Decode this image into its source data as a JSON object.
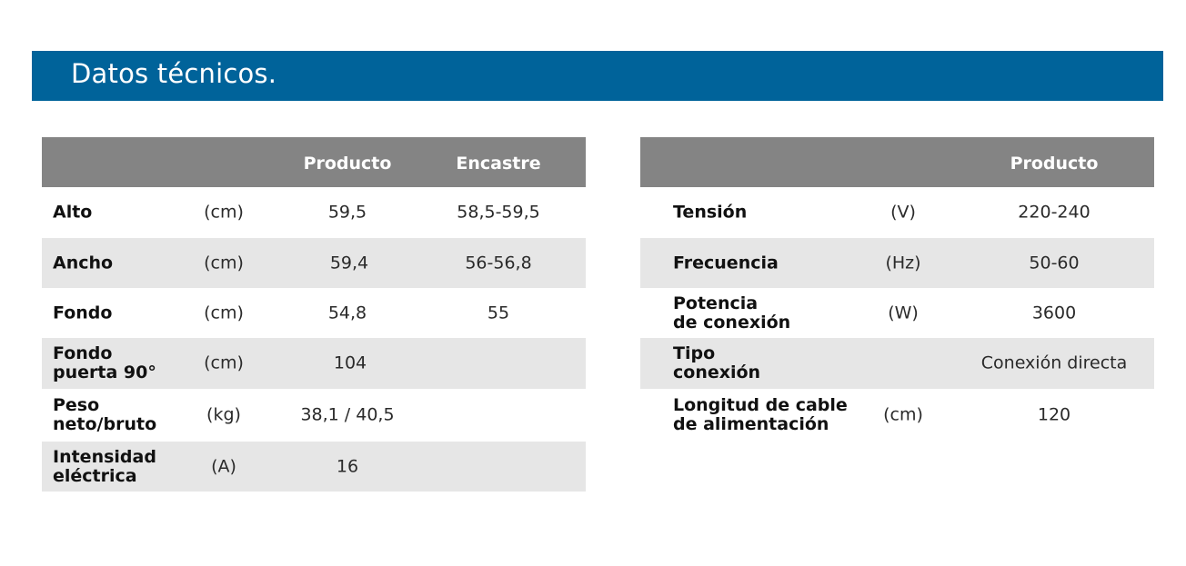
{
  "header": {
    "title": "Datos técnicos."
  },
  "left_table": {
    "columns": [
      "",
      "",
      "Producto",
      "Encastre"
    ],
    "rows": [
      {
        "label_1": "Alto",
        "label_2": "",
        "unit": "(cm)",
        "producto": "59,5",
        "encastre": "58,5-59,5"
      },
      {
        "label_1": "Ancho",
        "label_2": "",
        "unit": "(cm)",
        "producto": "59,4",
        "encastre": "56-56,8"
      },
      {
        "label_1": "Fondo",
        "label_2": "",
        "unit": "(cm)",
        "producto": "54,8",
        "encastre": "55"
      },
      {
        "label_1": "Fondo",
        "label_2": "puerta 90°",
        "unit": "(cm)",
        "producto": "104",
        "encastre": ""
      },
      {
        "label_1": "Peso",
        "label_2": "neto/bruto",
        "unit": "(kg)",
        "producto": "38,1 / 40,5",
        "encastre": ""
      },
      {
        "label_1": "Intensidad",
        "label_2": "eléctrica",
        "unit": "(A)",
        "producto": "16",
        "encastre": ""
      }
    ]
  },
  "right_table": {
    "columns": [
      "",
      "",
      "Producto"
    ],
    "rows": [
      {
        "label_1": "Tensión",
        "label_2": "",
        "unit": "(V)",
        "producto": "220-240"
      },
      {
        "label_1": "Frecuencia",
        "label_2": "",
        "unit": "(Hz)",
        "producto": "50-60"
      },
      {
        "label_1": "Potencia",
        "label_2": "de conexión",
        "unit": "(W)",
        "producto": "3600"
      },
      {
        "label_1": "Tipo",
        "label_2": "conexión",
        "unit": "",
        "producto": "Conexión directa"
      },
      {
        "label_1": "Longitud de cable",
        "label_2": "de alimentación",
        "unit": "(cm)",
        "producto": "120"
      }
    ]
  },
  "colors": {
    "banner": "#00639a",
    "table_header": "#848484",
    "row_shade": "#e6e6e6"
  }
}
